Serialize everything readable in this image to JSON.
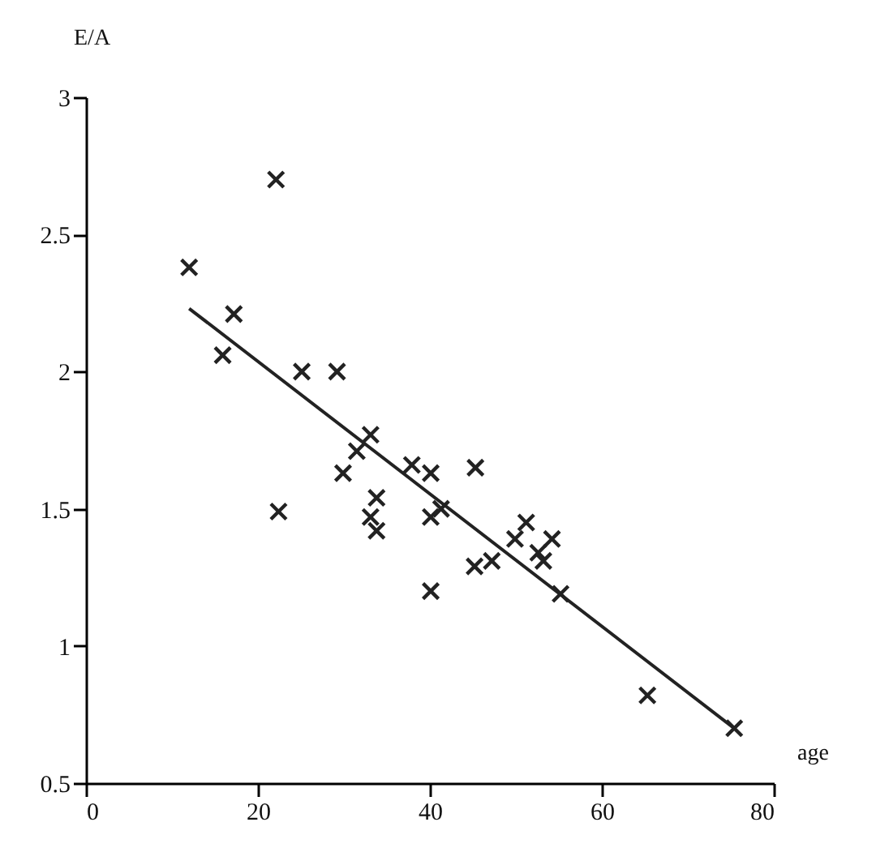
{
  "chart_data": {
    "type": "scatter",
    "xlabel": "age",
    "ylabel": "E/A",
    "xlim": [
      0,
      80
    ],
    "ylim": [
      0.5,
      3
    ],
    "xticks": [
      0,
      20,
      40,
      60,
      80
    ],
    "yticks": [
      0.5,
      1,
      1.5,
      2,
      2.5,
      3
    ],
    "grid": false,
    "series": [
      {
        "color": "#222222",
        "marker": "cross",
        "x": [
          12.0,
          22.1,
          17.2,
          15.9,
          25.1,
          29.2,
          33.1,
          31.5,
          29.9,
          37.9,
          40.1,
          45.3,
          33.8,
          33.1,
          33.8,
          22.4,
          40.1,
          41.3,
          45.2,
          47.2,
          49.9,
          51.2,
          52.6,
          53.2,
          54.2,
          40.1,
          55.2,
          65.3,
          75.4
        ],
        "values": [
          2.38,
          2.7,
          2.21,
          2.06,
          2.0,
          2.0,
          1.77,
          1.71,
          1.63,
          1.66,
          1.63,
          1.65,
          1.54,
          1.47,
          1.42,
          1.49,
          1.47,
          1.5,
          1.29,
          1.31,
          1.39,
          1.45,
          1.34,
          1.31,
          1.39,
          1.2,
          1.19,
          0.82,
          0.7
        ]
      },
      {
        "type": "line",
        "color": "#222222",
        "x": [
          12.0,
          75.4
        ],
        "values": [
          2.23,
          0.7
        ]
      }
    ]
  }
}
